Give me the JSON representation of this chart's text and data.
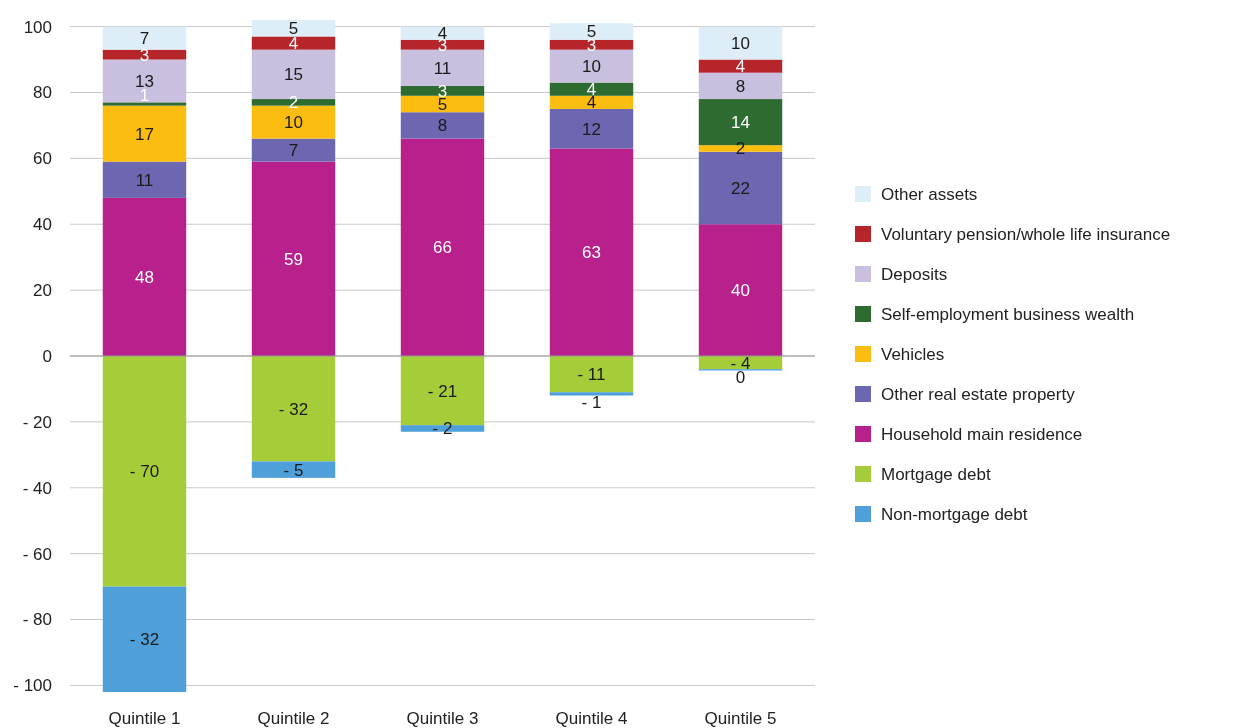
{
  "chart_data": {
    "type": "bar",
    "stacked": true,
    "categories": [
      "Quintile 1",
      "Quintile 2",
      "Quintile 3",
      "Quintile 4",
      "Quintile 5"
    ],
    "series": [
      {
        "name": "Household main residence",
        "color": "#b8218c",
        "values": [
          48,
          59,
          66,
          63,
          40
        ]
      },
      {
        "name": "Other real estate property",
        "color": "#6c67b0",
        "values": [
          11,
          7,
          8,
          12,
          22
        ]
      },
      {
        "name": "Vehicles",
        "color": "#fbbd0f",
        "values": [
          17,
          10,
          5,
          4,
          2
        ]
      },
      {
        "name": "Self-employment business wealth",
        "color": "#2e6b30",
        "values": [
          1,
          2,
          3,
          4,
          14
        ]
      },
      {
        "name": "Deposits",
        "color": "#c9bfdf",
        "values": [
          13,
          15,
          11,
          10,
          8
        ]
      },
      {
        "name": "Voluntary pension/whole life insurance",
        "color": "#b5252a",
        "values": [
          3,
          4,
          3,
          3,
          4
        ]
      },
      {
        "name": "Other assets",
        "color": "#ddeef8",
        "values": [
          7,
          5,
          4,
          5,
          10
        ]
      },
      {
        "name": "Mortgage debt",
        "color": "#a5cd3a",
        "values": [
          -70,
          -32,
          -21,
          -11,
          -4
        ],
        "value_labels": [
          "- 70",
          "- 32",
          "- 21",
          "- 11",
          "- 4"
        ]
      },
      {
        "name": "Non-mortgage debt",
        "color": "#4f9fd9",
        "values": [
          -32,
          -5,
          -2,
          -1,
          -0.4
        ],
        "value_labels": [
          "- 32",
          "- 5",
          "- 2",
          "- 1",
          "0"
        ]
      }
    ],
    "ylim": [
      -102,
      102
    ],
    "yticks": [
      {
        "value": -100,
        "label": "- 100"
      },
      {
        "value": -80,
        "label": "- 80"
      },
      {
        "value": -60,
        "label": "- 60"
      },
      {
        "value": -40,
        "label": "- 40"
      },
      {
        "value": -20,
        "label": "- 20"
      },
      0,
      20,
      40,
      60,
      80,
      100
    ],
    "grid": "y",
    "legend": "right",
    "data_labels": true
  }
}
